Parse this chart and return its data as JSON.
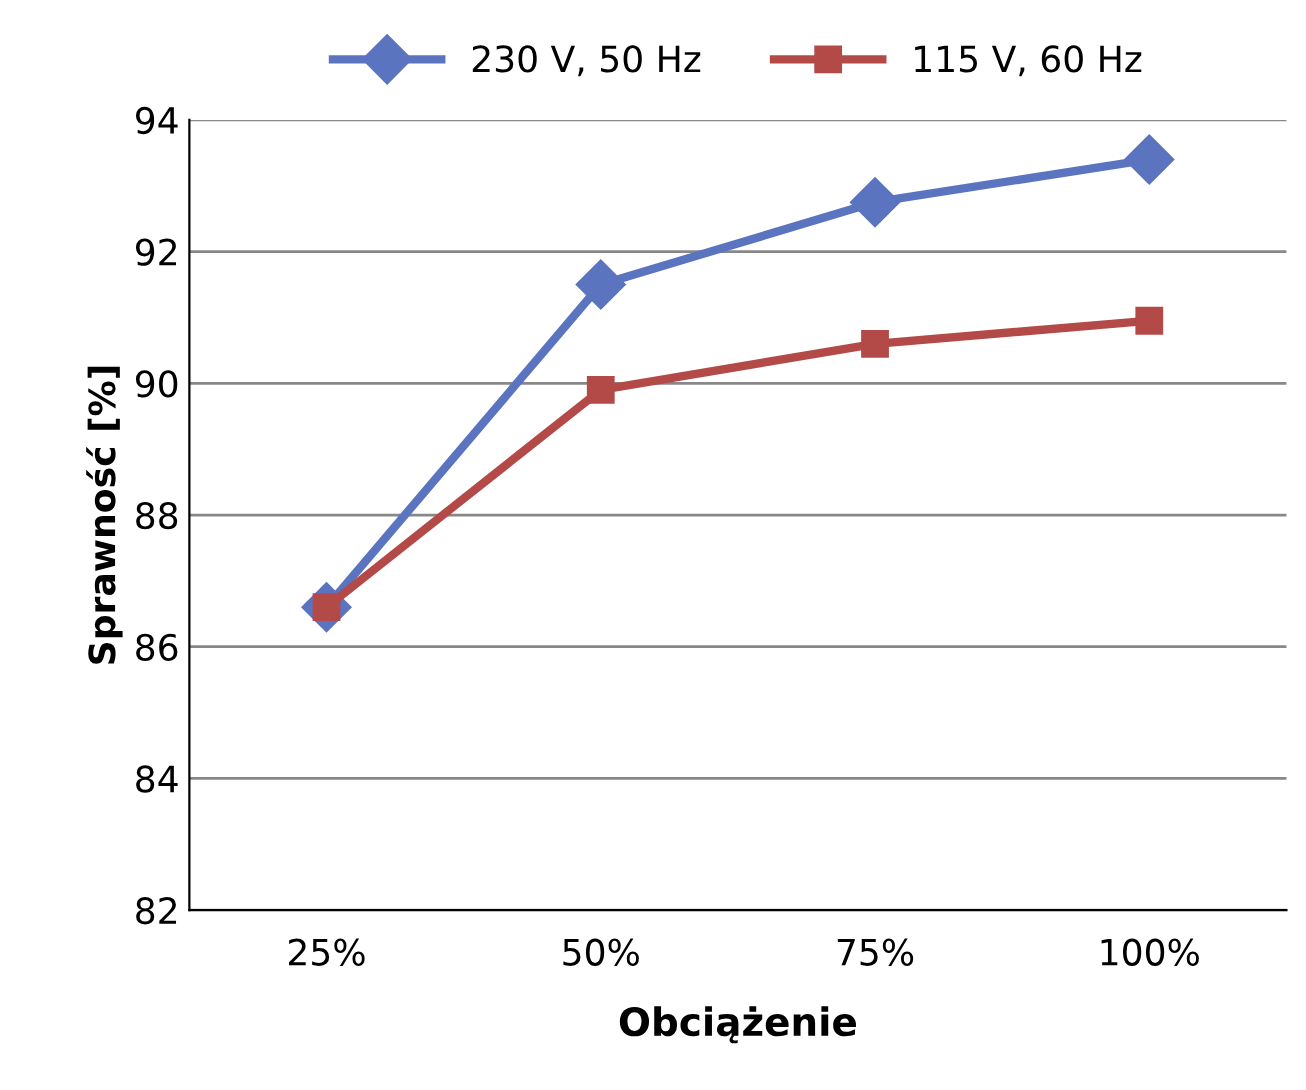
{
  "chart_data": {
    "type": "line",
    "xlabel": "Obciążenie",
    "ylabel": "Sprawność [%]",
    "categories": [
      "25%",
      "50%",
      "75%",
      "100%"
    ],
    "series": [
      {
        "name": "230 V, 50 Hz",
        "color": "#5b74c0",
        "values": [
          86.6,
          91.5,
          92.75,
          93.4
        ],
        "marker": "diamond"
      },
      {
        "name": "115 V, 60 Hz",
        "color": "#b34a48",
        "values": [
          86.6,
          89.9,
          90.6,
          90.95
        ],
        "marker": "square"
      }
    ],
    "ylim": [
      82,
      94
    ],
    "yticks": [
      82,
      84,
      86,
      88,
      90,
      92,
      94
    ],
    "grid": "y",
    "legend": "top",
    "line_style": "solid"
  }
}
